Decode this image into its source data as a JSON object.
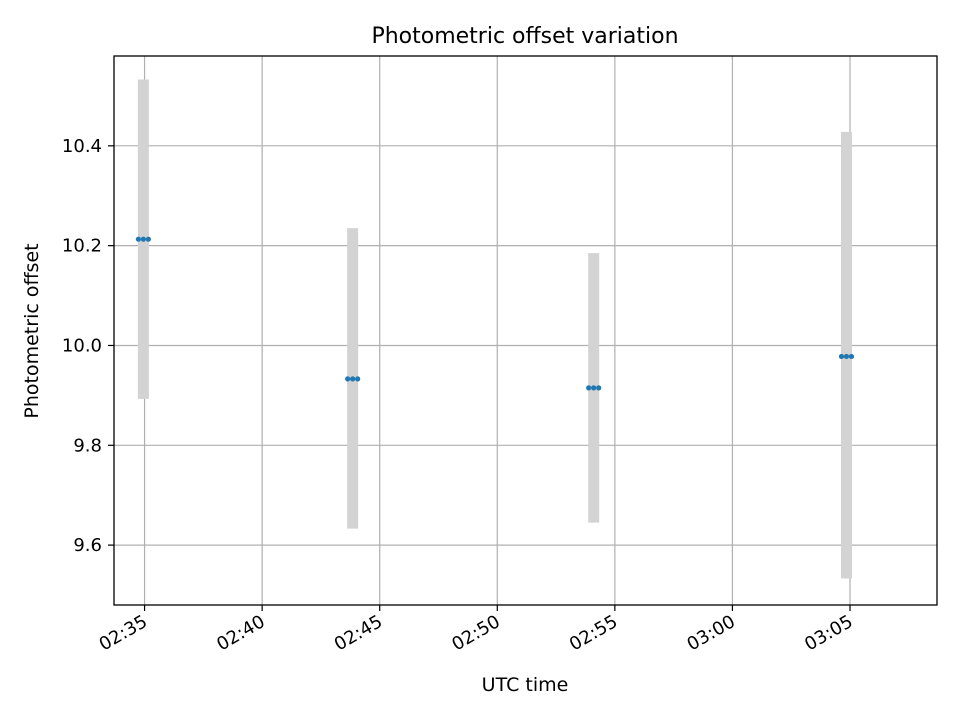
{
  "chart_data": {
    "type": "scatter",
    "title": "Photometric offset variation",
    "xlabel": "UTC time",
    "ylabel": "Photometric offset",
    "x_unit": "minutes after 02:30 UTC",
    "xlim": [
      3.1,
      38.1
    ],
    "ylim": [
      9.48,
      10.58
    ],
    "grid": true,
    "x_ticks": [
      {
        "value": 4.4,
        "label": "02:35"
      },
      {
        "value": 9.4,
        "label": "02:40"
      },
      {
        "value": 14.4,
        "label": "02:45"
      },
      {
        "value": 19.4,
        "label": "02:50"
      },
      {
        "value": 24.4,
        "label": "02:55"
      },
      {
        "value": 29.4,
        "label": "03:00"
      },
      {
        "value": 34.4,
        "label": "03:05"
      }
    ],
    "y_ticks": [
      {
        "value": 9.6,
        "label": "9.6"
      },
      {
        "value": 9.8,
        "label": "9.8"
      },
      {
        "value": 10.0,
        "label": "10.0"
      },
      {
        "value": 10.2,
        "label": "10.2"
      },
      {
        "value": 10.4,
        "label": "10.4"
      }
    ],
    "points": [
      {
        "x": 4.35,
        "y": 10.213,
        "low": 9.893,
        "high": 10.533
      },
      {
        "x": 13.25,
        "y": 9.933,
        "low": 9.633,
        "high": 10.235
      },
      {
        "x": 23.5,
        "y": 9.915,
        "low": 9.645,
        "high": 10.185
      },
      {
        "x": 34.25,
        "y": 9.978,
        "low": 9.533,
        "high": 10.428
      }
    ],
    "colors": {
      "marker": "#1f77b4",
      "errorbar": "#d3d3d3",
      "grid": "#b0b0b0",
      "axes": "#000000"
    }
  }
}
